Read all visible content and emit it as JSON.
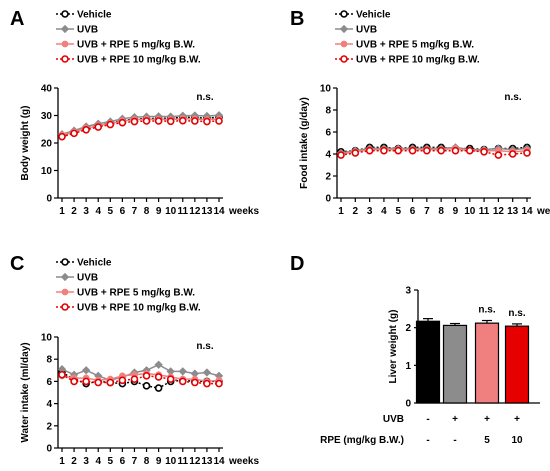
{
  "chart_data": [
    {
      "panel": "A",
      "type": "line",
      "ylabel": "Body weight (g)",
      "xlabel": "weeks",
      "categories": [
        "1",
        "2",
        "3",
        "4",
        "5",
        "6",
        "7",
        "8",
        "9",
        "10",
        "11",
        "12",
        "13",
        "14"
      ],
      "ylim": [
        0,
        40
      ],
      "yticks": [
        "0",
        "10",
        "20",
        "30",
        "40"
      ],
      "annotation": "n.s.",
      "series": [
        {
          "name": "Vehicle",
          "color": "#000000",
          "marker": "open-circle",
          "dashed": true,
          "values": [
            22.6,
            23.8,
            25.4,
            26.3,
            27.2,
            28.2,
            28.7,
            28.9,
            28.9,
            29.0,
            29.4,
            29.2,
            29.1,
            29.3
          ]
        },
        {
          "name": "UVB",
          "color": "#8c8c8c",
          "marker": "filled-diamond",
          "dashed": false,
          "values": [
            23.2,
            24.5,
            26.0,
            27.0,
            27.8,
            28.8,
            29.4,
            29.6,
            29.7,
            29.6,
            29.9,
            30.0,
            29.8,
            30.1
          ]
        },
        {
          "name": "UVB + RPE 5 mg/kg B.W.",
          "color": "#f08080",
          "marker": "filled-circle",
          "dashed": false,
          "values": [
            22.9,
            24.0,
            25.3,
            26.3,
            27.1,
            28.0,
            28.5,
            28.6,
            28.6,
            28.5,
            28.8,
            28.7,
            28.5,
            28.7
          ]
        },
        {
          "name": "UVB + RPE 10 mg/kg B.W.",
          "color": "#e60000",
          "marker": "open-circle",
          "dashed": true,
          "values": [
            22.3,
            23.5,
            24.8,
            25.8,
            26.7,
            27.4,
            27.8,
            28.0,
            28.0,
            27.9,
            28.1,
            28.0,
            27.8,
            28.0
          ]
        }
      ]
    },
    {
      "panel": "B",
      "type": "line",
      "ylabel": "Food intake (g/day)",
      "xlabel": "weeks",
      "categories": [
        "1",
        "2",
        "3",
        "4",
        "5",
        "6",
        "7",
        "8",
        "9",
        "10",
        "11",
        "12",
        "13",
        "14"
      ],
      "ylim": [
        0,
        10
      ],
      "yticks": [
        "0",
        "2",
        "4",
        "6",
        "8",
        "10"
      ],
      "annotation": "n.s.",
      "series": [
        {
          "name": "Vehicle",
          "color": "#000000",
          "marker": "open-circle",
          "dashed": true,
          "values": [
            4.2,
            4.3,
            4.6,
            4.6,
            4.5,
            4.6,
            4.6,
            4.6,
            4.5,
            4.5,
            4.4,
            4.5,
            4.5,
            4.6
          ]
        },
        {
          "name": "UVB",
          "color": "#8c8c8c",
          "marker": "filled-diamond",
          "dashed": false,
          "values": [
            4.1,
            4.3,
            4.5,
            4.5,
            4.5,
            4.5,
            4.5,
            4.5,
            4.6,
            4.4,
            4.4,
            4.5,
            4.4,
            4.5
          ]
        },
        {
          "name": "UVB + RPE 5 mg/kg B.W.",
          "color": "#f08080",
          "marker": "filled-circle",
          "dashed": false,
          "values": [
            4.0,
            4.2,
            4.4,
            4.4,
            4.4,
            4.4,
            4.4,
            4.4,
            4.5,
            4.3,
            4.3,
            4.3,
            4.2,
            4.3
          ]
        },
        {
          "name": "UVB + RPE 10 mg/kg B.W.",
          "color": "#e60000",
          "marker": "open-circle",
          "dashed": true,
          "values": [
            3.9,
            4.1,
            4.3,
            4.3,
            4.3,
            4.3,
            4.3,
            4.3,
            4.3,
            4.3,
            4.2,
            3.9,
            4.0,
            4.1
          ]
        }
      ]
    },
    {
      "panel": "C",
      "type": "line",
      "ylabel": "Water intake  (ml/day)",
      "xlabel": "weeks",
      "categories": [
        "1",
        "2",
        "3",
        "4",
        "5",
        "6",
        "7",
        "8",
        "9",
        "10",
        "11",
        "12",
        "13",
        "14"
      ],
      "ylim": [
        0,
        10
      ],
      "yticks": [
        "0",
        "2",
        "4",
        "6",
        "8",
        "10"
      ],
      "annotation": "n.s.",
      "series": [
        {
          "name": "Vehicle",
          "color": "#000000",
          "marker": "open-circle",
          "dashed": true,
          "values": [
            6.8,
            6.2,
            5.8,
            6.0,
            5.9,
            5.8,
            6.0,
            5.6,
            5.4,
            6.0,
            6.1,
            6.0,
            6.0,
            6.0
          ]
        },
        {
          "name": "UVB",
          "color": "#8c8c8c",
          "marker": "filled-diamond",
          "dashed": false,
          "values": [
            7.1,
            6.6,
            7.0,
            6.5,
            6.1,
            6.4,
            6.8,
            7.0,
            7.5,
            6.9,
            6.9,
            6.7,
            6.8,
            6.5
          ]
        },
        {
          "name": "UVB + RPE 5 mg/kg B.W.",
          "color": "#f08080",
          "marker": "filled-circle",
          "dashed": false,
          "values": [
            6.5,
            6.3,
            6.3,
            6.1,
            6.2,
            6.5,
            6.6,
            6.7,
            6.6,
            6.4,
            6.2,
            6.2,
            6.0,
            6.1
          ]
        },
        {
          "name": "UVB + RPE 10 mg/kg B.W.",
          "color": "#e60000",
          "marker": "open-circle",
          "dashed": true,
          "values": [
            6.6,
            6.0,
            6.0,
            5.9,
            5.9,
            6.1,
            6.2,
            6.5,
            6.4,
            6.2,
            6.0,
            5.9,
            5.8,
            5.8
          ]
        }
      ]
    },
    {
      "panel": "D",
      "type": "bar",
      "ylabel": "Liver weight (g)",
      "ylim": [
        0,
        3
      ],
      "yticks": [
        "0",
        "1",
        "2",
        "3"
      ],
      "categories": [
        "Vehicle",
        "UVB",
        "UVB + RPE 5 mg/kg B.W.",
        "UVB + RPE 10 mg/kg B.W."
      ],
      "values": [
        2.17,
        2.06,
        2.12,
        2.04
      ],
      "errors": [
        0.07,
        0.05,
        0.07,
        0.06
      ],
      "colors": [
        "#000000",
        "#8c8c8c",
        "#f08080",
        "#e60000"
      ],
      "annotations": [
        "",
        "",
        "n.s.",
        "n.s."
      ],
      "condition_rows": [
        {
          "label": "UVB",
          "values": [
            "-",
            "+",
            "+",
            "+"
          ]
        },
        {
          "label": "RPE (mg/kg B.W.)",
          "values": [
            "-",
            "-",
            "5",
            "10"
          ]
        }
      ]
    }
  ]
}
